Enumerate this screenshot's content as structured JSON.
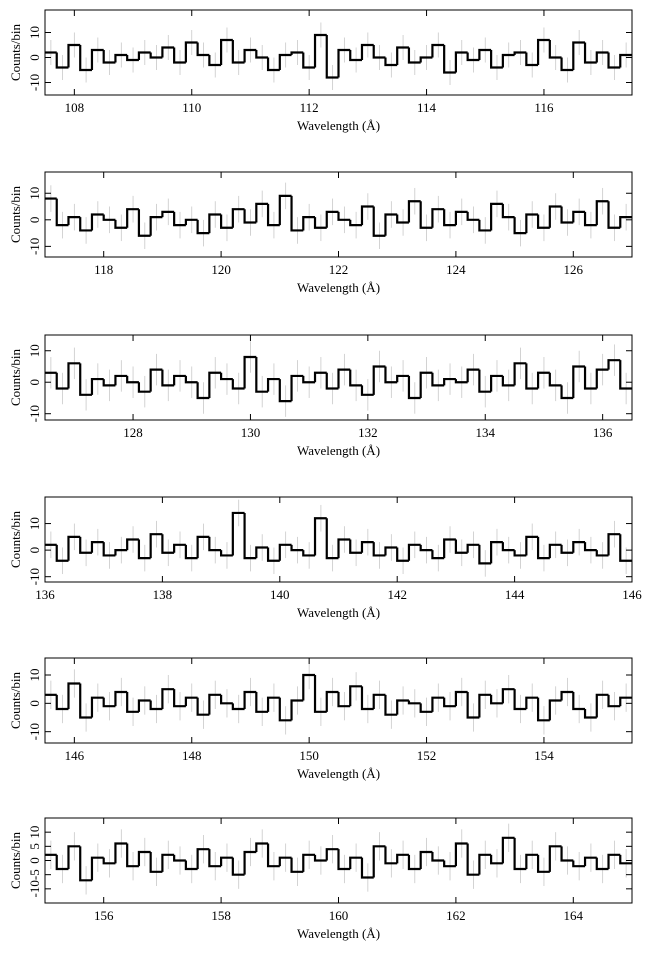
{
  "chart_data": [
    {
      "type": "histogram",
      "xlabel": "Wavelength (Å)",
      "ylabel": "Counts/bin",
      "error": 5,
      "bins": [
        107.5,
        107.7,
        107.9,
        108.1,
        108.3,
        108.5,
        108.7,
        108.9,
        109.1,
        109.3,
        109.5,
        109.7,
        109.9,
        110.1,
        110.3,
        110.5,
        110.7,
        110.9,
        111.1,
        111.3,
        111.5,
        111.7,
        111.9,
        112.1,
        112.3,
        112.5,
        112.7,
        112.9,
        113.1,
        113.3,
        113.5,
        113.7,
        113.9,
        114.1,
        114.3,
        114.5,
        114.7,
        114.9,
        115.1,
        115.3,
        115.5,
        115.7,
        115.9,
        116.1,
        116.3,
        116.5,
        116.7,
        116.9,
        117.1,
        117.3,
        117.5
      ],
      "values": [
        2,
        -4,
        5,
        -5,
        3,
        -2,
        1,
        -1,
        2,
        0,
        4,
        -2,
        6,
        1,
        -3,
        7,
        -2,
        3,
        0,
        -5,
        1,
        2,
        -4,
        9,
        -8,
        3,
        -1,
        5,
        0,
        -3,
        4,
        -2,
        0,
        5,
        -6,
        2,
        -1,
        3,
        -4,
        1,
        2,
        -3,
        7,
        0,
        -5,
        6,
        -2,
        2,
        -4,
        1
      ],
      "xlim": [
        107.5,
        117.5
      ],
      "xticks": [
        108,
        110,
        112,
        114,
        116
      ],
      "ylim": [
        -15,
        19
      ],
      "yticks": [
        -10,
        0,
        10
      ],
      "color": "#000000"
    },
    {
      "type": "histogram",
      "xlabel": "Wavelength (Å)",
      "ylabel": "Counts/bin",
      "error": 5,
      "bins": [
        117,
        117.2,
        117.4,
        117.6,
        117.8,
        118,
        118.2,
        118.4,
        118.6,
        118.8,
        119,
        119.2,
        119.4,
        119.6,
        119.8,
        120,
        120.2,
        120.4,
        120.6,
        120.8,
        121,
        121.2,
        121.4,
        121.6,
        121.8,
        122,
        122.2,
        122.4,
        122.6,
        122.8,
        123,
        123.2,
        123.4,
        123.6,
        123.8,
        124,
        124.2,
        124.4,
        124.6,
        124.8,
        125,
        125.2,
        125.4,
        125.6,
        125.8,
        126,
        126.2,
        126.4,
        126.6,
        126.8,
        127
      ],
      "values": [
        8,
        -2,
        1,
        -4,
        2,
        0,
        -3,
        4,
        -6,
        1,
        3,
        -2,
        0,
        -5,
        2,
        -3,
        4,
        -1,
        6,
        -2,
        9,
        -4,
        1,
        -3,
        3,
        0,
        -2,
        5,
        -6,
        2,
        -1,
        7,
        -3,
        4,
        -2,
        3,
        0,
        -4,
        6,
        1,
        -5,
        2,
        -3,
        5,
        -1,
        3,
        -2,
        7,
        -3,
        1
      ],
      "xlim": [
        117,
        127
      ],
      "xticks": [
        118,
        120,
        122,
        124,
        126
      ],
      "ylim": [
        -14,
        18
      ],
      "yticks": [
        -10,
        0,
        10
      ],
      "color": "#000000"
    },
    {
      "type": "histogram",
      "xlabel": "Wavelength (Å)",
      "ylabel": "Counts/bin",
      "error": 5,
      "bins": [
        126.5,
        126.7,
        126.9,
        127.1,
        127.3,
        127.5,
        127.7,
        127.9,
        128.1,
        128.3,
        128.5,
        128.7,
        128.9,
        129.1,
        129.3,
        129.5,
        129.7,
        129.9,
        130.1,
        130.3,
        130.5,
        130.7,
        130.9,
        131.1,
        131.3,
        131.5,
        131.7,
        131.9,
        132.1,
        132.3,
        132.5,
        132.7,
        132.9,
        133.1,
        133.3,
        133.5,
        133.7,
        133.9,
        134.1,
        134.3,
        134.5,
        134.7,
        134.9,
        135.1,
        135.3,
        135.5,
        135.7,
        135.9,
        136.1,
        136.3,
        136.5
      ],
      "values": [
        3,
        -2,
        6,
        -4,
        1,
        -1,
        2,
        0,
        -3,
        4,
        -1,
        2,
        0,
        -5,
        3,
        1,
        -2,
        8,
        -3,
        1,
        -6,
        2,
        0,
        3,
        -2,
        4,
        -1,
        -4,
        5,
        0,
        2,
        -5,
        3,
        -1,
        1,
        0,
        4,
        -3,
        2,
        -1,
        6,
        -2,
        3,
        -1,
        -5,
        5,
        -2,
        4,
        7,
        -2
      ],
      "xlim": [
        126.5,
        136.5
      ],
      "xticks": [
        128,
        130,
        132,
        134,
        136
      ],
      "ylim": [
        -12,
        15
      ],
      "yticks": [
        -10,
        0,
        10
      ],
      "color": "#000000"
    },
    {
      "type": "histogram",
      "xlabel": "Wavelength (Å)",
      "ylabel": "Counts/bin",
      "error": 5,
      "bins": [
        136,
        136.2,
        136.4,
        136.6,
        136.8,
        137,
        137.2,
        137.4,
        137.6,
        137.8,
        138,
        138.2,
        138.4,
        138.6,
        138.8,
        139,
        139.2,
        139.4,
        139.6,
        139.8,
        140,
        140.2,
        140.4,
        140.6,
        140.8,
        141,
        141.2,
        141.4,
        141.6,
        141.8,
        142,
        142.2,
        142.4,
        142.6,
        142.8,
        143,
        143.2,
        143.4,
        143.6,
        143.8,
        144,
        144.2,
        144.4,
        144.6,
        144.8,
        145,
        145.2,
        145.4,
        145.6,
        145.8,
        146
      ],
      "values": [
        2,
        -4,
        5,
        -1,
        3,
        -2,
        0,
        4,
        -3,
        6,
        -1,
        2,
        -3,
        5,
        0,
        -2,
        14,
        -3,
        1,
        -4,
        2,
        0,
        -2,
        12,
        -3,
        4,
        -1,
        3,
        -2,
        1,
        -4,
        2,
        0,
        -3,
        4,
        -1,
        2,
        -5,
        3,
        0,
        -2,
        5,
        -3,
        2,
        -1,
        3,
        0,
        -2,
        6,
        -4
      ],
      "xlim": [
        136,
        146
      ],
      "xticks": [
        136,
        138,
        140,
        142,
        144,
        146
      ],
      "ylim": [
        -12,
        20
      ],
      "yticks": [
        -10,
        0,
        10
      ],
      "color": "#000000"
    },
    {
      "type": "histogram",
      "xlabel": "Wavelength (Å)",
      "ylabel": "Counts/bin",
      "error": 5,
      "bins": [
        145.5,
        145.7,
        145.9,
        146.1,
        146.3,
        146.5,
        146.7,
        146.9,
        147.1,
        147.3,
        147.5,
        147.7,
        147.9,
        148.1,
        148.3,
        148.5,
        148.7,
        148.9,
        149.1,
        149.3,
        149.5,
        149.7,
        149.9,
        150.1,
        150.3,
        150.5,
        150.7,
        150.9,
        151.1,
        151.3,
        151.5,
        151.7,
        151.9,
        152.1,
        152.3,
        152.5,
        152.7,
        152.9,
        153.1,
        153.3,
        153.5,
        153.7,
        153.9,
        154.1,
        154.3,
        154.5,
        154.7,
        154.9,
        155.1,
        155.3,
        155.5
      ],
      "values": [
        3,
        -2,
        7,
        -5,
        2,
        -1,
        4,
        -3,
        1,
        -2,
        5,
        -1,
        2,
        -4,
        3,
        0,
        -2,
        4,
        -3,
        2,
        -6,
        1,
        10,
        -3,
        4,
        -1,
        6,
        -2,
        3,
        -4,
        1,
        0,
        -3,
        2,
        -1,
        4,
        -5,
        3,
        0,
        5,
        -2,
        2,
        -6,
        1,
        4,
        -2,
        -5,
        3,
        -1,
        2
      ],
      "xlim": [
        145.5,
        155.5
      ],
      "xticks": [
        146,
        148,
        150,
        152,
        154
      ],
      "ylim": [
        -14,
        16
      ],
      "yticks": [
        -10,
        0,
        10
      ],
      "color": "#000000"
    },
    {
      "type": "histogram",
      "xlabel": "Wavelength (Å)",
      "ylabel": "Counts/bin",
      "error": 5,
      "bins": [
        155,
        155.2,
        155.4,
        155.6,
        155.8,
        156,
        156.2,
        156.4,
        156.6,
        156.8,
        157,
        157.2,
        157.4,
        157.6,
        157.8,
        158,
        158.2,
        158.4,
        158.6,
        158.8,
        159,
        159.2,
        159.4,
        159.6,
        159.8,
        160,
        160.2,
        160.4,
        160.6,
        160.8,
        161,
        161.2,
        161.4,
        161.6,
        161.8,
        162,
        162.2,
        162.4,
        162.6,
        162.8,
        163,
        163.2,
        163.4,
        163.6,
        163.8,
        164,
        164.2,
        164.4,
        164.6,
        164.8,
        165
      ],
      "values": [
        2,
        -3,
        5,
        -7,
        1,
        -1,
        6,
        -2,
        3,
        -4,
        2,
        0,
        -3,
        4,
        -2,
        1,
        -5,
        3,
        6,
        -2,
        1,
        -4,
        2,
        0,
        4,
        -3,
        1,
        -6,
        5,
        -1,
        2,
        -3,
        3,
        0,
        -2,
        6,
        -5,
        2,
        -1,
        8,
        -3,
        2,
        -4,
        5,
        0,
        -2,
        1,
        -3,
        2,
        -1
      ],
      "xlim": [
        155,
        165
      ],
      "xticks": [
        156,
        158,
        160,
        162,
        164
      ],
      "ylim": [
        -15,
        15
      ],
      "yticks": [
        -10,
        -5,
        0,
        5,
        10
      ],
      "color": "#000000"
    }
  ]
}
